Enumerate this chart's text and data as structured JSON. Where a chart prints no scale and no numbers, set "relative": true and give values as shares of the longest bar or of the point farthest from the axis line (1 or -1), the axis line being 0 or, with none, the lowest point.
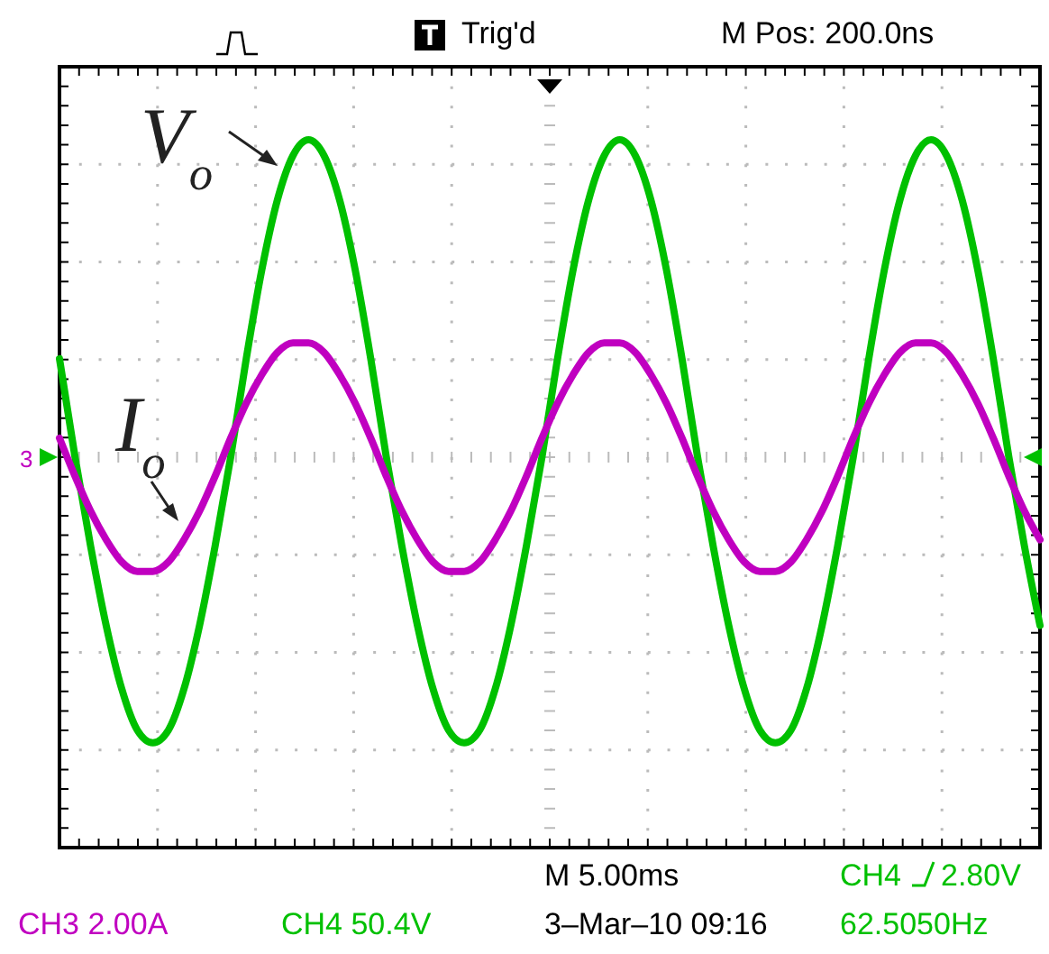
{
  "chart_data": {
    "type": "line",
    "relative": true,
    "grid": true,
    "ref_lines": [
      {
        "axis": "y",
        "value": 0,
        "color": "#bbbbbb"
      }
    ],
    "marker": "none",
    "line_style": "solid",
    "categories": [
      null,
      null,
      null,
      null,
      null,
      null,
      null,
      null,
      null,
      null,
      null,
      null,
      null,
      null,
      null,
      null,
      null,
      null,
      null,
      null,
      null,
      null,
      null,
      null,
      null,
      null,
      null,
      null,
      null,
      null,
      null,
      null,
      null,
      null,
      null,
      null,
      null,
      null,
      null,
      null,
      null,
      null,
      null,
      null,
      null,
      null,
      null,
      null,
      null,
      null,
      null,
      null,
      null,
      null,
      null,
      null,
      null,
      null,
      null,
      null,
      null,
      null,
      null,
      null
    ],
    "series": [
      {
        "color": "#00c000",
        "values": [
          0.31,
          0,
          -0.28,
          -0.53,
          -0.73,
          -0.86,
          -0.9,
          -0.86,
          -0.73,
          -0.53,
          -0.28,
          0,
          0.31,
          0.59,
          0.81,
          0.95,
          1,
          0.95,
          0.81,
          0.59,
          0.31,
          0,
          -0.28,
          -0.53,
          -0.73,
          -0.86,
          -0.9,
          -0.86,
          -0.73,
          -0.53,
          -0.28,
          0,
          0.31,
          0.59,
          0.81,
          0.95,
          1,
          0.95,
          0.81,
          0.59,
          0.31,
          0,
          -0.28,
          -0.53,
          -0.73,
          -0.86,
          -0.9,
          -0.86,
          -0.73,
          -0.53,
          -0.28,
          0,
          0.31,
          0.59,
          0.81,
          0.95,
          1,
          0.95,
          0.81,
          0.59,
          0.31,
          0,
          -0.28,
          -0.53
        ]
      },
      {
        "color": "#c000c0",
        "values": [
          0.06,
          -0.06,
          -0.17,
          -0.26,
          -0.33,
          -0.36,
          -0.36,
          -0.33,
          -0.26,
          -0.17,
          -0.06,
          0.06,
          0.17,
          0.26,
          0.33,
          0.36,
          0.36,
          0.33,
          0.26,
          0.17,
          0.06,
          -0.06,
          -0.17,
          -0.26,
          -0.33,
          -0.36,
          -0.36,
          -0.33,
          -0.26,
          -0.17,
          -0.06,
          0.06,
          0.17,
          0.26,
          0.33,
          0.36,
          0.36,
          0.33,
          0.26,
          0.17,
          0.06,
          -0.06,
          -0.17,
          -0.26,
          -0.33,
          -0.36,
          -0.36,
          -0.33,
          -0.26,
          -0.17,
          -0.06,
          0.06,
          0.17,
          0.26,
          0.33,
          0.36,
          0.36,
          0.33,
          0.26,
          0.17,
          0.06,
          -0.06,
          -0.17,
          -0.26
        ]
      }
    ],
    "annotations": [
      "V$_{o}$",
      "I$_{o}$",
      "Trig'd",
      "M Pos: 200.0ns",
      "M 5.00ms",
      "CH4",
      "2.80V",
      "CH3  2.00A",
      "CH4  50.4V",
      "3–Mar–10 09:16",
      "62.5050Hz",
      "3"
    ]
  }
}
